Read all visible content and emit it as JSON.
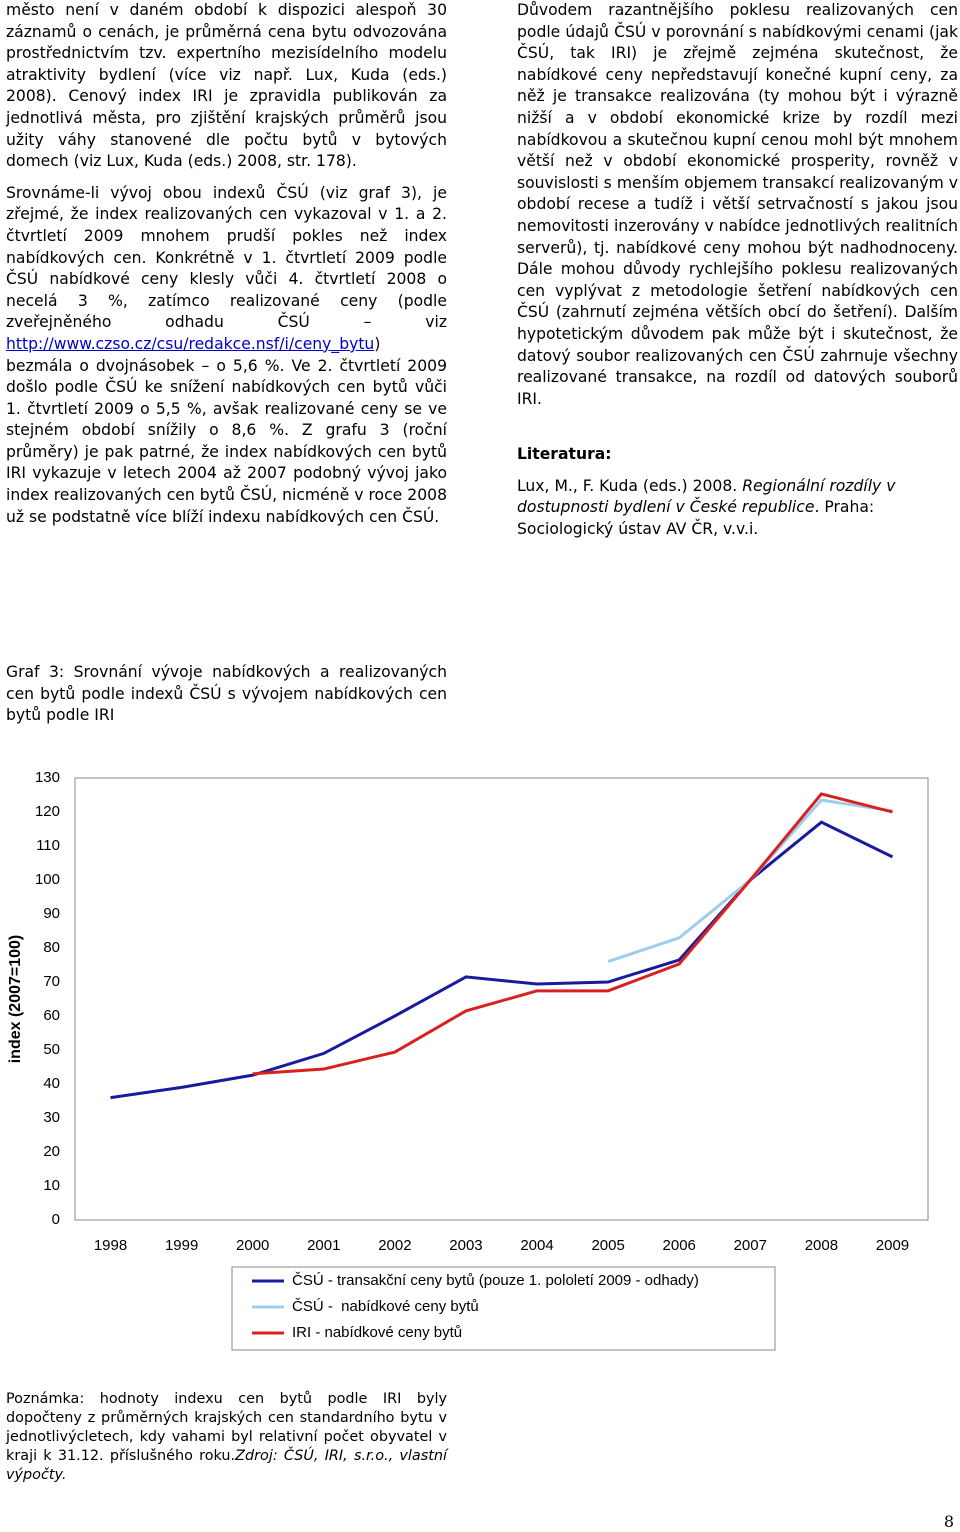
{
  "left_column": {
    "paragraph_1": "město není v daném období k dispozici alespoň 30 záznamů o cenách, je průměrná cena bytu odvozována prostřednictvím tzv. expertního mezisídelního modelu atraktivity bydlení (více viz např. Lux, Kuda (eds.) 2008). Cenový index IRI je zpravidla publikován za jednotlivá města, pro zjištění krajských průměrů jsou užity váhy stanovené dle počtu bytů v bytových domech (viz Lux, Kuda (eds.) 2008, str. 178).",
    "paragraph_2_before_link": "Srovnáme-li vývoj obou indexů ČSÚ (viz graf 3), je zřejmé, že index realizovaných cen vykazoval v 1. a 2. čtvrtletí 2009 mnohem prudší pokles než index nabídkových cen. Konkrétně v 1. čtvrtletí 2009 podle ČSÚ nabídkové ceny klesly vůči 4. čtvrtletí 2008 o necelá 3 %, zatímco realizované ceny (podle zveřejněného odhadu ČSÚ – viz",
    "paragraph_2_link": "http://www.czso.cz/csu/redakce.nsf/i/ceny_bytu",
    "paragraph_2_after_link": ") bezmála o dvojnásobek – o 5,6 %. Ve 2. čtvrtletí 2009 došlo podle ČSÚ ke snížení nabídkových cen bytů vůči 1. čtvrtletí 2009 o 5,5 %, avšak realizované ceny se ve stejném období snížily o 8,6 %. Z grafu 3 (roční průměry) je pak patrné, že index nabídkových cen bytů IRI vykazuje v letech 2004 až 2007 podobný vývoj jako index realizovaných cen bytů ČSÚ, nicméně v roce 2008 už se podstatně více blíží indexu nabídkových cen ČSÚ."
  },
  "right_column": {
    "paragraph": "Důvodem razantnějšího poklesu realizovaných cen podle údajů ČSÚ v porovnání s nabídkovými cenami (jak ČSÚ, tak IRI) je zřejmě zejména skutečnost, že nabídkové ceny nepředstavují konečné kupní ceny, za něž je transakce realizována (ty mohou být i výrazně nižší a v období ekonomické krize by rozdíl mezi nabídkovou a skutečnou kupní cenou mohl být mnohem větší než v období ekonomické prosperity, rovněž v souvislosti s menším objemem transakcí realizovaným v období recese a tudíž i větší setrvačností s jakou jsou nemovitosti inzerovány v nabídce jednotlivých realitních serverů), tj. nabídkové ceny mohou být nadhodnoceny. Dále mohou důvody rychlejšího poklesu realizovaných cen vyplývat z metodologie šetření nabídkových cen ČSÚ (zahrnutí zejména větších obcí do šetření). Dalším hypotetickým důvodem pak může být i skutečnost, že datový soubor realizovaných cen ČSÚ zahrnuje všechny realizované transakce, na rozdíl od datových souborů IRI.",
    "literature_heading": "Literatura:",
    "reference_authors": "Lux, M., F. Kuda (eds.) 2008.",
    "reference_title": "Regionální rozdíly v dostupnosti bydlení v České republice",
    "reference_rest": ". Praha: Sociologický ústav AV ČR, v.v.i."
  },
  "caption": "Graf 3: Srovnání vývoje nabídkových a realizovaných cen bytů podle indexů ČSÚ s vývojem nabídkových cen bytů podle IRI",
  "chart_data": {
    "type": "line",
    "y_label": "index (2007=100)",
    "categories": [
      "1998",
      "1999",
      "2000",
      "2001",
      "2002",
      "2003",
      "2004",
      "2005",
      "2006",
      "2007",
      "2008",
      "2009"
    ],
    "ylim": [
      0,
      130
    ],
    "yticks": [
      0,
      10,
      20,
      30,
      40,
      50,
      60,
      70,
      80,
      90,
      100,
      110,
      120,
      130
    ],
    "grid": false,
    "series": [
      {
        "name": "ČSÚ - transakční ceny bytů (pouze 1. pololetí 2009 - odhady)",
        "color": "#1a1a9e",
        "values": [
          36,
          39,
          42.6,
          49,
          60,
          71.5,
          69.4,
          70,
          76.5,
          100,
          117,
          106.8
        ]
      },
      {
        "name": "ČSÚ -  nabídkové ceny bytů",
        "color": "#9fcdec",
        "values": [
          null,
          null,
          null,
          null,
          null,
          null,
          null,
          76,
          83,
          100,
          123.5,
          120.3
        ]
      },
      {
        "name": "IRI - nabídkové ceny bytů",
        "color": "#d92020",
        "values": [
          null,
          null,
          43,
          44.4,
          49.4,
          61.5,
          67.4,
          67.4,
          75.3,
          100,
          125.3,
          120
        ]
      }
    ]
  },
  "note_text": "Poznámka: hodnoty indexu cen bytů podle IRI byly dopočteny z průměrných krajských cen standardního bytu v jednotlivýcletech, kdy vahami byl relativní počet obyvatel v kraji k 31.12. příslušného roku.",
  "note_source": "Zdroj: ČSÚ, IRI, s.r.o., vlastní výpočty.",
  "page_number": "8"
}
